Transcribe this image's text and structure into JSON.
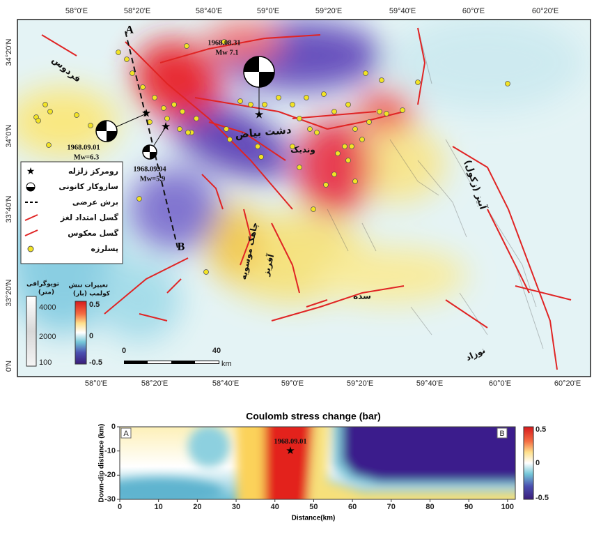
{
  "map": {
    "top_lon_labels": [
      "58°0'E",
      "58°20'E",
      "58°40'E",
      "59°0'E",
      "59°20'E",
      "59°40'E",
      "60°0'E",
      "60°20'E"
    ],
    "bottom_lon_labels": [
      "58°0'E",
      "58°20'E",
      "58°40'E",
      "59°0'E",
      "59°20'E",
      "59°40'E",
      "60°0'E",
      "60°20'E"
    ],
    "lat_labels": [
      "34°20'N",
      "34°0'N",
      "33°40'N",
      "33°20'N",
      "0'N"
    ],
    "places": [
      "فردوس",
      "دشت بیاض",
      "وندیک",
      "آبیز (زکول)",
      "چاهک موسویه",
      "آفریز",
      "سده",
      "نوزاد"
    ],
    "events": [
      {
        "date": "1968.08.31",
        "mag": "Mw 7.1"
      },
      {
        "date": "1968.09.01",
        "mag": "Mw=6.3"
      },
      {
        "date": "1968.09.04",
        "mag": "Mw=5.9"
      }
    ],
    "profile_ends": [
      "A",
      "B"
    ],
    "legend": [
      "رومرکز زلزله",
      "سازوکار کانونی",
      "برش عرضی",
      "گسل امتداد لغز",
      "گسل معکوس",
      "پسلرزه"
    ],
    "topo_bar": {
      "title": "توپوگرافی",
      "unit": "(متر)",
      "ticks": [
        4000,
        2000,
        100
      ]
    },
    "stress_bar": {
      "title": "تغییرات تنش",
      "unit": "کولمب (بار)",
      "ticks": [
        0.5,
        0,
        -0.5
      ]
    },
    "scale_bar": {
      "ticks": [
        0,
        40
      ],
      "unit": "km"
    }
  },
  "section": {
    "title": "Coulomb stress change  (bar)",
    "xlabel": "Distance(km)",
    "ylabel": "Down-dip distance (km)",
    "xlim": [
      0,
      102
    ],
    "ylim": [
      -30,
      0
    ],
    "xticks": [
      0,
      10,
      20,
      30,
      40,
      50,
      60,
      70,
      80,
      90,
      100
    ],
    "yticks": [
      0,
      -10,
      -20,
      -30
    ],
    "colorbar_ticks": [
      0.5,
      0,
      -0.5
    ],
    "ends": [
      "A",
      "B"
    ],
    "event": {
      "label": "1968.09.01",
      "distance": 44,
      "depth": -10
    }
  }
}
